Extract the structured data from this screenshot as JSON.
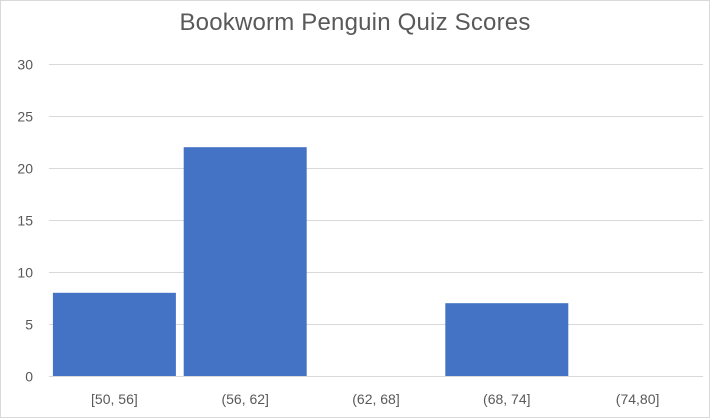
{
  "chart_data": {
    "type": "bar",
    "title": "Bookworm Penguin Quiz Scores",
    "categories": [
      "[50, 56]",
      "(56, 62]",
      "(62, 68]",
      "(68, 74]",
      "(74,80]"
    ],
    "values": [
      8,
      22,
      0,
      7,
      0
    ],
    "xlabel": "",
    "ylabel": "",
    "ylim": [
      0,
      30
    ],
    "yticks": [
      0,
      5,
      10,
      15,
      20,
      25,
      30
    ],
    "grid": true,
    "legend": "none",
    "bar_color": "#4472c4",
    "grid_color": "#d9d9d9",
    "text_color": "#595959"
  }
}
